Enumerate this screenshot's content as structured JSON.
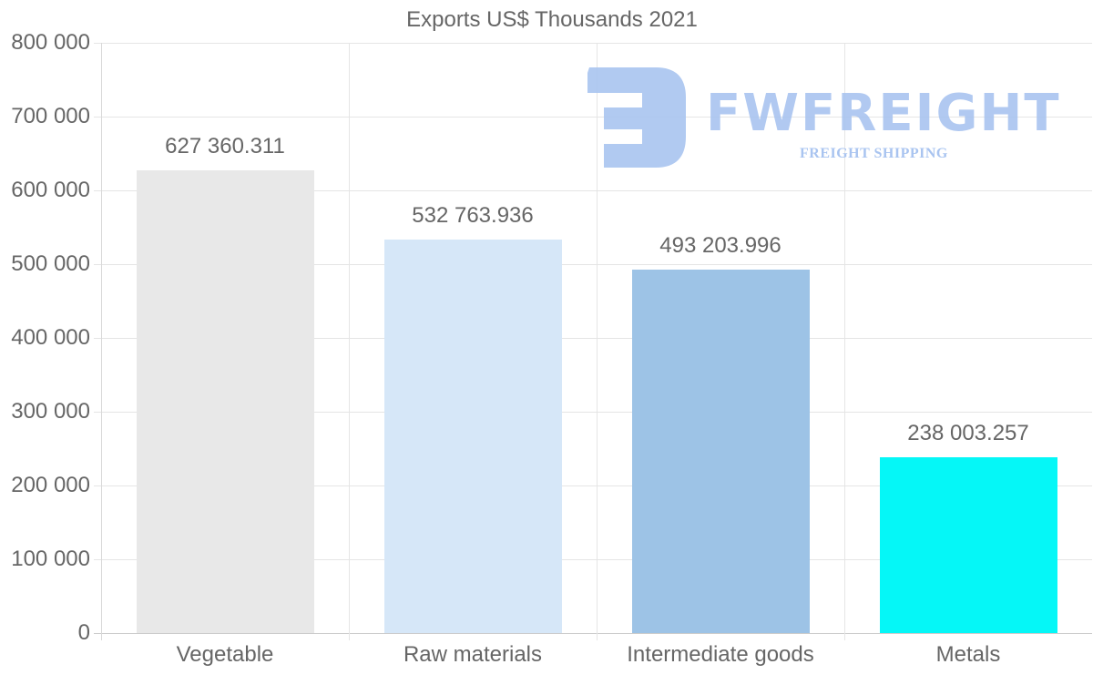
{
  "chart_data": {
    "type": "bar",
    "title": "Exports US$ Thousands 2021",
    "categories": [
      "Vegetable",
      "Raw materials",
      "Intermediate goods",
      "Metals"
    ],
    "values": [
      627360.311,
      532763.936,
      493203.996,
      238003.257
    ],
    "value_labels": [
      "627 360.311",
      "532 763.936",
      "493 203.996",
      "238 003.257"
    ],
    "colors": [
      "#e8e8e8",
      "#d6e7f8",
      "#9dc3e6",
      "#05f7f7"
    ],
    "xlabel": "",
    "ylabel": "",
    "ylim": [
      0,
      800000
    ],
    "yticks": [
      "800 000",
      "700 000",
      "600 000",
      "500 000",
      "400 000",
      "300 000",
      "200 000",
      "100 000",
      "0"
    ],
    "grid": true,
    "legend": "none"
  },
  "watermark": {
    "brand": "FWFREIGHT",
    "tagline": "FREIGHT SHIPPING",
    "color": "#a9c4f0"
  }
}
